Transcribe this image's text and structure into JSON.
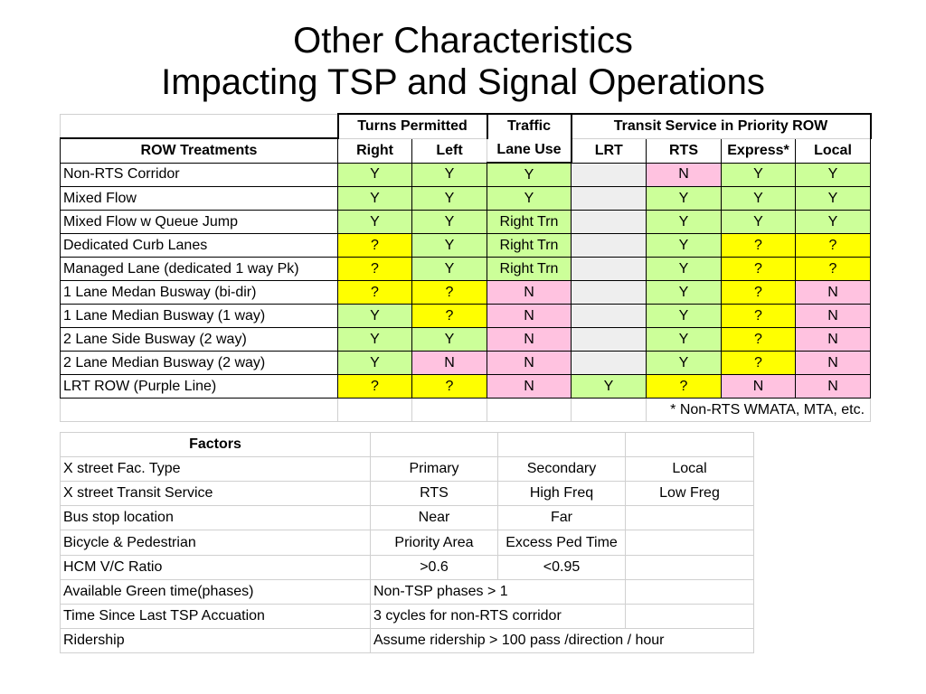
{
  "title": {
    "line1": "Other Characteristics",
    "line2": "Impacting TSP and Signal Operations"
  },
  "colors": {
    "green": "#ccff99",
    "yellow": "#ffff00",
    "pink": "#ffc2e0",
    "gray": "#eeeeee",
    "white": "#ffffff"
  },
  "row_table": {
    "group_turns": "Turns Permitted",
    "traffic_line1": "Traffic",
    "traffic_line2": "Lane Use",
    "group_transit": "Transit Service in Priority ROW",
    "headers": [
      "ROW Treatments",
      "Right",
      "Left",
      "LRT",
      "RTS",
      "Express*",
      "Local"
    ],
    "rows": [
      {
        "label": "Non-RTS Corridor",
        "cells": [
          [
            "Y",
            "green"
          ],
          [
            "Y",
            "green"
          ],
          [
            "Y",
            "green"
          ],
          [
            "",
            "gray"
          ],
          [
            "N",
            "pink"
          ],
          [
            "Y",
            "green"
          ],
          [
            "Y",
            "green"
          ]
        ]
      },
      {
        "label": "Mixed Flow",
        "cells": [
          [
            "Y",
            "green"
          ],
          [
            "Y",
            "green"
          ],
          [
            "Y",
            "green"
          ],
          [
            "",
            "gray"
          ],
          [
            "Y",
            "green"
          ],
          [
            "Y",
            "green"
          ],
          [
            "Y",
            "green"
          ]
        ]
      },
      {
        "label": "Mixed Flow w Queue Jump",
        "cells": [
          [
            "Y",
            "green"
          ],
          [
            "Y",
            "green"
          ],
          [
            "Right Trn",
            "green"
          ],
          [
            "",
            "gray"
          ],
          [
            "Y",
            "green"
          ],
          [
            "Y",
            "green"
          ],
          [
            "Y",
            "green"
          ]
        ]
      },
      {
        "label": "Dedicated Curb Lanes",
        "cells": [
          [
            "?",
            "yellow"
          ],
          [
            "Y",
            "green"
          ],
          [
            "Right Trn",
            "green"
          ],
          [
            "",
            "gray"
          ],
          [
            "Y",
            "green"
          ],
          [
            "?",
            "yellow"
          ],
          [
            "?",
            "yellow"
          ]
        ]
      },
      {
        "label": "Managed Lane (dedicated 1 way Pk)",
        "cells": [
          [
            "?",
            "yellow"
          ],
          [
            "Y",
            "green"
          ],
          [
            "Right Trn",
            "green"
          ],
          [
            "",
            "gray"
          ],
          [
            "Y",
            "green"
          ],
          [
            "?",
            "yellow"
          ],
          [
            "?",
            "yellow"
          ]
        ]
      },
      {
        "label": "1 Lane Medan Busway (bi-dir)",
        "cells": [
          [
            "?",
            "yellow"
          ],
          [
            "?",
            "yellow"
          ],
          [
            "N",
            "pink"
          ],
          [
            "",
            "gray"
          ],
          [
            "Y",
            "green"
          ],
          [
            "?",
            "yellow"
          ],
          [
            "N",
            "pink"
          ]
        ]
      },
      {
        "label": "1 Lane Median Busway (1 way)",
        "cells": [
          [
            "Y",
            "green"
          ],
          [
            "?",
            "yellow"
          ],
          [
            "N",
            "pink"
          ],
          [
            "",
            "gray"
          ],
          [
            "Y",
            "green"
          ],
          [
            "?",
            "yellow"
          ],
          [
            "N",
            "pink"
          ]
        ]
      },
      {
        "label": "2 Lane Side Busway (2 way)",
        "cells": [
          [
            "Y",
            "green"
          ],
          [
            "Y",
            "green"
          ],
          [
            "N",
            "pink"
          ],
          [
            "",
            "gray"
          ],
          [
            "Y",
            "green"
          ],
          [
            "?",
            "yellow"
          ],
          [
            "N",
            "pink"
          ]
        ]
      },
      {
        "label": "2 Lane Median Busway (2 way)",
        "cells": [
          [
            "Y",
            "green"
          ],
          [
            "N",
            "pink"
          ],
          [
            "N",
            "pink"
          ],
          [
            "",
            "gray"
          ],
          [
            "Y",
            "green"
          ],
          [
            "?",
            "yellow"
          ],
          [
            "N",
            "pink"
          ]
        ]
      },
      {
        "label": "LRT ROW (Purple Line)",
        "cells": [
          [
            "?",
            "yellow"
          ],
          [
            "?",
            "yellow"
          ],
          [
            "N",
            "pink"
          ],
          [
            "Y",
            "green"
          ],
          [
            "?",
            "yellow"
          ],
          [
            "N",
            "pink"
          ],
          [
            "N",
            "pink"
          ]
        ]
      }
    ],
    "footnote": "* Non-RTS WMATA, MTA, etc."
  },
  "factors_table": {
    "header": "Factors",
    "rows": [
      {
        "label": "X street  Fac. Type",
        "values": [
          "Primary",
          "Secondary",
          "Local"
        ]
      },
      {
        "label": "X street Transit Service",
        "values": [
          "RTS",
          "High Freq",
          "Low Freg"
        ]
      },
      {
        "label": "Bus stop location",
        "values": [
          "Near",
          "Far",
          ""
        ]
      },
      {
        "label": "Bicycle & Pedestrian",
        "values": [
          "Priority Area",
          "Excess Ped Time",
          ""
        ]
      },
      {
        "label": "HCM V/C Ratio",
        "values": [
          ">0.6",
          "<0.95",
          ""
        ]
      }
    ],
    "span_rows": [
      {
        "label": "Available Green time(phases)",
        "value": "Non-TSP phases > 1",
        "span": 2
      },
      {
        "label": "Time Since Last TSP Accuation",
        "value": "3 cycles for non-RTS corridor",
        "span": 2
      },
      {
        "label": "Ridership",
        "value": "Assume ridership > 100 pass /direction / hour",
        "span": 3
      }
    ]
  }
}
